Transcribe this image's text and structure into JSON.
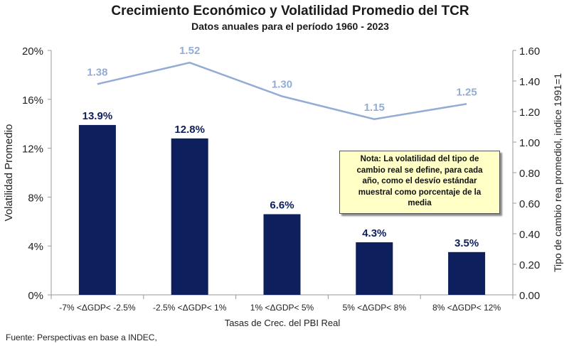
{
  "chart_data": {
    "type": "bar+line",
    "title": "Crecimiento Económico y Volatilidad Promedio del TCR",
    "subtitle": "Datos anuales para el período 1960 - 2023",
    "categories": [
      "-7% <ΔGDP< -2.5%",
      "-2.5% <ΔGDP< 1%",
      "1% <ΔGDP< 5%",
      "5% <ΔGDP< 8%",
      "8% <ΔGDP< 12%"
    ],
    "series": [
      {
        "name": "Volatilidad Promedio",
        "type": "bar",
        "axis": "left",
        "values": [
          13.9,
          12.8,
          6.6,
          4.3,
          3.5
        ],
        "labels": [
          "13.9%",
          "12.8%",
          "6.6%",
          "4.3%",
          "3.5%"
        ],
        "color": "#0d1f5c"
      },
      {
        "name": "Tipo de cambio rea promediol, indice 1991=1",
        "type": "line",
        "axis": "right",
        "values": [
          1.38,
          1.52,
          1.3,
          1.15,
          1.25
        ],
        "labels": [
          "1.38",
          "1.52",
          "1.30",
          "1.15",
          "1.25"
        ],
        "color": "#93acd6"
      }
    ],
    "xlabel": "Tasas de Crec. del PBI Real",
    "ylabel": "Volatilidad Promedio",
    "y2label": "Tipo de cambio rea promediol, indice 1991=1",
    "ylim": [
      0,
      20
    ],
    "y2lim": [
      0,
      1.6
    ],
    "yticks": [
      "0%",
      "4%",
      "8%",
      "12%",
      "16%",
      "20%"
    ],
    "y2ticks": [
      "0.00",
      "0.20",
      "0.40",
      "0.60",
      "0.80",
      "1.00",
      "1.20",
      "1.40",
      "1.60"
    ],
    "grid": false
  },
  "note": {
    "lines": [
      "Nota: La volatilidad del tipo de",
      "cambio real se define, para cada",
      "año, como el desvío estándar",
      "muestral como porcentaje de la",
      "media"
    ]
  },
  "source": "Fuente: Perspectivas en base a INDEC,",
  "colors": {
    "bar": "#0d1f5c",
    "line": "#93acd6",
    "axis": "#9a9a9a",
    "text": "#222222"
  }
}
